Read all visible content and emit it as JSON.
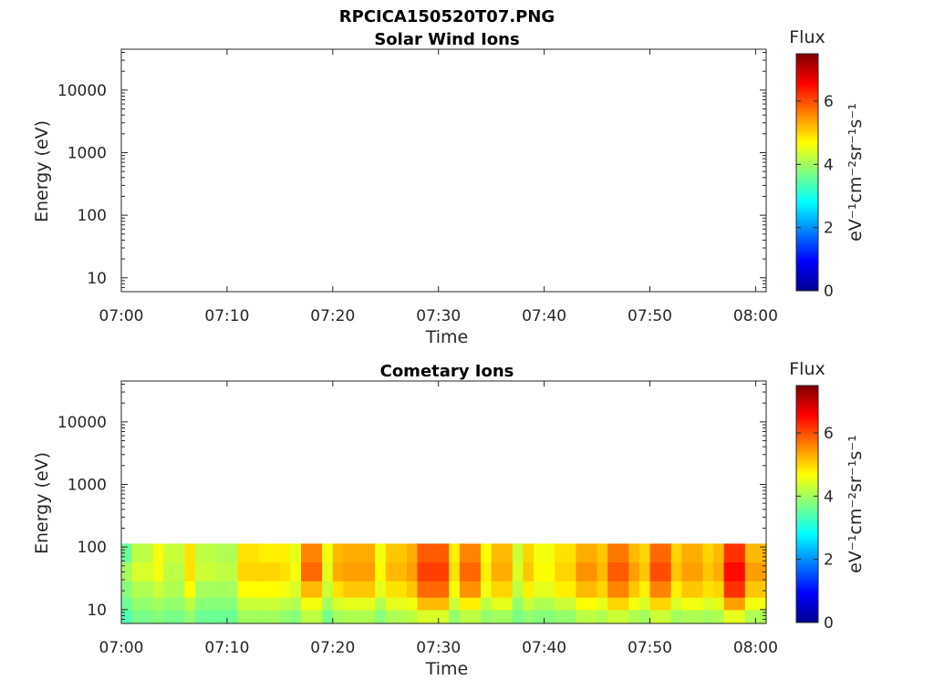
{
  "figure_title": "RPCICA150520T07.PNG",
  "colormap": [
    "#00008f",
    "#0000ff",
    "#0080ff",
    "#00ffff",
    "#80ff80",
    "#ffff00",
    "#ff8000",
    "#ff0000",
    "#800000"
  ],
  "chart_data": [
    {
      "type": "heatmap",
      "title": "Solar Wind Ions",
      "xlabel": "Time",
      "ylabel": "Energy (eV)",
      "x_range": [
        "07:00",
        "08:01"
      ],
      "x_ticks": [
        "07:00",
        "07:10",
        "07:20",
        "07:30",
        "07:40",
        "07:50",
        "08:00"
      ],
      "y_scale": "log",
      "y_range": [
        6,
        45000
      ],
      "y_ticks": [
        "10",
        "100",
        "1000",
        "10000"
      ],
      "colorbar": {
        "label": "Flux",
        "units": "eV⁻¹cm⁻²sr⁻¹s⁻¹",
        "range": [
          0,
          7.5
        ],
        "ticks": [
          "0",
          "2",
          "4",
          "6"
        ]
      },
      "data": []
    },
    {
      "type": "heatmap",
      "title": "Cometary Ions",
      "xlabel": "Time",
      "ylabel": "Energy (eV)",
      "x_range": [
        "07:00",
        "08:01"
      ],
      "x_ticks": [
        "07:00",
        "07:10",
        "07:20",
        "07:30",
        "07:40",
        "07:50",
        "08:00"
      ],
      "y_scale": "log",
      "y_range": [
        6,
        45000
      ],
      "y_ticks": [
        "10",
        "100",
        "1000",
        "10000"
      ],
      "colorbar": {
        "label": "Flux",
        "units": "eV⁻¹cm⁻²sr⁻¹s⁻¹",
        "range": [
          0,
          7.5
        ],
        "ticks": [
          "0",
          "2",
          "4",
          "6"
        ]
      },
      "energy_bins_eV": [
        80,
        40,
        20,
        12,
        8
      ],
      "data": [
        {
          "start": "07:00",
          "end": "07:01",
          "flux": [
            3.6,
            4.0,
            3.8,
            3.6,
            3.4
          ]
        },
        {
          "start": "07:01",
          "end": "07:03",
          "flux": [
            4.2,
            4.4,
            4.1,
            3.9,
            3.7
          ]
        },
        {
          "start": "07:03",
          "end": "07:04",
          "flux": [
            4.6,
            4.6,
            4.3,
            4.0,
            3.8
          ]
        },
        {
          "start": "07:04",
          "end": "07:06",
          "flux": [
            4.3,
            4.2,
            4.1,
            3.9,
            3.7
          ]
        },
        {
          "start": "07:06",
          "end": "07:07",
          "flux": [
            4.9,
            4.9,
            4.7,
            4.2,
            3.9
          ]
        },
        {
          "start": "07:07",
          "end": "07:09",
          "flux": [
            4.2,
            4.3,
            4.0,
            3.8,
            3.6
          ]
        },
        {
          "start": "07:09",
          "end": "07:11",
          "flux": [
            4.1,
            4.2,
            4.0,
            3.8,
            3.6
          ]
        },
        {
          "start": "07:11",
          "end": "07:13",
          "flux": [
            4.9,
            5.0,
            4.7,
            4.3,
            4.0
          ]
        },
        {
          "start": "07:13",
          "end": "07:15",
          "flux": [
            4.8,
            5.0,
            4.7,
            4.3,
            4.0
          ]
        },
        {
          "start": "07:15",
          "end": "07:16",
          "flux": [
            4.8,
            4.9,
            4.6,
            4.2,
            3.9
          ]
        },
        {
          "start": "07:16",
          "end": "07:17",
          "flux": [
            4.5,
            4.6,
            4.4,
            4.1,
            3.8
          ]
        },
        {
          "start": "07:17",
          "end": "07:19",
          "flux": [
            5.6,
            5.8,
            5.2,
            4.6,
            4.2
          ]
        },
        {
          "start": "07:19",
          "end": "07:20",
          "flux": [
            4.6,
            4.5,
            4.3,
            4.0,
            3.7
          ]
        },
        {
          "start": "07:20",
          "end": "07:21",
          "flux": [
            5.2,
            5.3,
            4.9,
            4.4,
            4.0
          ]
        },
        {
          "start": "07:21",
          "end": "07:24",
          "flux": [
            5.3,
            5.4,
            5.1,
            4.5,
            4.1
          ]
        },
        {
          "start": "07:24",
          "end": "07:25",
          "flux": [
            4.6,
            4.7,
            4.5,
            4.1,
            3.8
          ]
        },
        {
          "start": "07:25",
          "end": "07:27",
          "flux": [
            5.1,
            5.2,
            4.9,
            4.5,
            4.1
          ]
        },
        {
          "start": "07:27",
          "end": "07:28",
          "flux": [
            5.3,
            5.4,
            5.1,
            4.6,
            4.2
          ]
        },
        {
          "start": "07:28",
          "end": "07:31",
          "flux": [
            5.9,
            6.1,
            5.8,
            5.2,
            4.4
          ]
        },
        {
          "start": "07:31",
          "end": "07:32",
          "flux": [
            4.8,
            4.9,
            4.7,
            4.3,
            3.9
          ]
        },
        {
          "start": "07:32",
          "end": "07:34",
          "flux": [
            5.6,
            5.8,
            5.5,
            4.8,
            4.2
          ]
        },
        {
          "start": "07:34",
          "end": "07:35",
          "flux": [
            4.7,
            4.8,
            4.6,
            4.2,
            3.9
          ]
        },
        {
          "start": "07:35",
          "end": "07:37",
          "flux": [
            5.2,
            5.3,
            5.0,
            4.5,
            4.0
          ]
        },
        {
          "start": "07:37",
          "end": "07:38",
          "flux": [
            4.3,
            4.4,
            4.2,
            3.9,
            3.7
          ]
        },
        {
          "start": "07:38",
          "end": "07:39",
          "flux": [
            5.0,
            5.1,
            4.8,
            4.3,
            3.9
          ]
        },
        {
          "start": "07:39",
          "end": "07:41",
          "flux": [
            4.6,
            4.7,
            4.5,
            4.1,
            3.8
          ]
        },
        {
          "start": "07:41",
          "end": "07:43",
          "flux": [
            4.9,
            5.0,
            4.8,
            4.3,
            3.9
          ]
        },
        {
          "start": "07:43",
          "end": "07:45",
          "flux": [
            5.3,
            5.5,
            5.2,
            4.7,
            4.2
          ]
        },
        {
          "start": "07:45",
          "end": "07:46",
          "flux": [
            5.1,
            5.2,
            5.0,
            4.5,
            4.1
          ]
        },
        {
          "start": "07:46",
          "end": "07:48",
          "flux": [
            5.7,
            5.9,
            5.6,
            5.0,
            4.3
          ]
        },
        {
          "start": "07:48",
          "end": "07:49",
          "flux": [
            5.2,
            5.4,
            5.1,
            4.6,
            4.1
          ]
        },
        {
          "start": "07:49",
          "end": "07:50",
          "flux": [
            5.0,
            5.1,
            4.8,
            4.4,
            4.0
          ]
        },
        {
          "start": "07:50",
          "end": "07:52",
          "flux": [
            5.8,
            6.0,
            5.6,
            5.0,
            4.3
          ]
        },
        {
          "start": "07:52",
          "end": "07:53",
          "flux": [
            5.0,
            5.1,
            4.8,
            4.4,
            4.0
          ]
        },
        {
          "start": "07:53",
          "end": "07:55",
          "flux": [
            5.3,
            5.4,
            5.1,
            4.6,
            4.1
          ]
        },
        {
          "start": "07:55",
          "end": "07:56",
          "flux": [
            5.0,
            5.1,
            4.9,
            4.4,
            4.0
          ]
        },
        {
          "start": "07:56",
          "end": "07:57",
          "flux": [
            5.2,
            5.3,
            5.0,
            4.5,
            4.1
          ]
        },
        {
          "start": "07:57",
          "end": "07:59",
          "flux": [
            6.2,
            6.5,
            6.2,
            5.4,
            4.5
          ]
        },
        {
          "start": "07:59",
          "end": "08:01",
          "flux": [
            5.2,
            5.4,
            5.1,
            4.6,
            4.1
          ]
        }
      ]
    }
  ]
}
